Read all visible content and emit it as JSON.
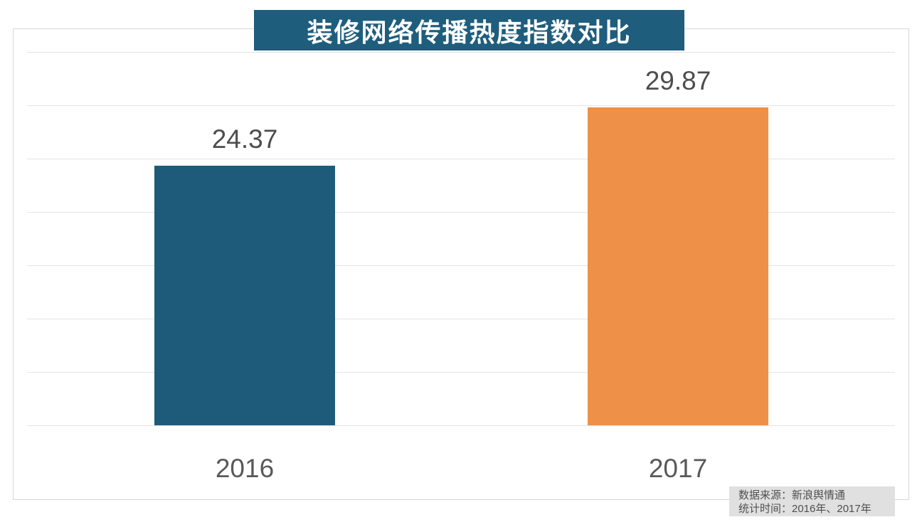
{
  "title": "装修网络传播热度指数对比",
  "chart_data": {
    "type": "bar",
    "categories": [
      "2016",
      "2017"
    ],
    "values": [
      24.37,
      29.87
    ],
    "series": [
      {
        "name": "装修网络传播热度指数",
        "values": [
          24.37,
          29.87
        ]
      }
    ],
    "title": "装修网络传播热度指数对比",
    "xlabel": "",
    "ylabel": "",
    "ylim": [
      0,
      37.3
    ],
    "grid": true,
    "gridline_values": [
      0,
      5,
      10,
      15,
      20,
      25,
      30,
      35
    ],
    "legend_position": "none",
    "bar_colors": [
      "#1E5B7A",
      "#EF9049"
    ],
    "data_labels": [
      "24.37",
      "29.87"
    ]
  },
  "source_note": {
    "line1": "数据来源：新浪舆情通",
    "line2": "统计时间：2016年、2017年"
  },
  "colors": {
    "title_bg": "#1F5D7D",
    "title_text": "#FFFFFF",
    "bar_2016": "#1E5B7A",
    "bar_2017": "#EF9049",
    "gridline": "#e3e3e3",
    "frame_border": "#d7d7d7",
    "value_label": "#4d4d4d",
    "category_label": "#595959",
    "source_bg": "#e0e0e0",
    "source_text": "#4f4f4f",
    "background": "#ffffff"
  }
}
